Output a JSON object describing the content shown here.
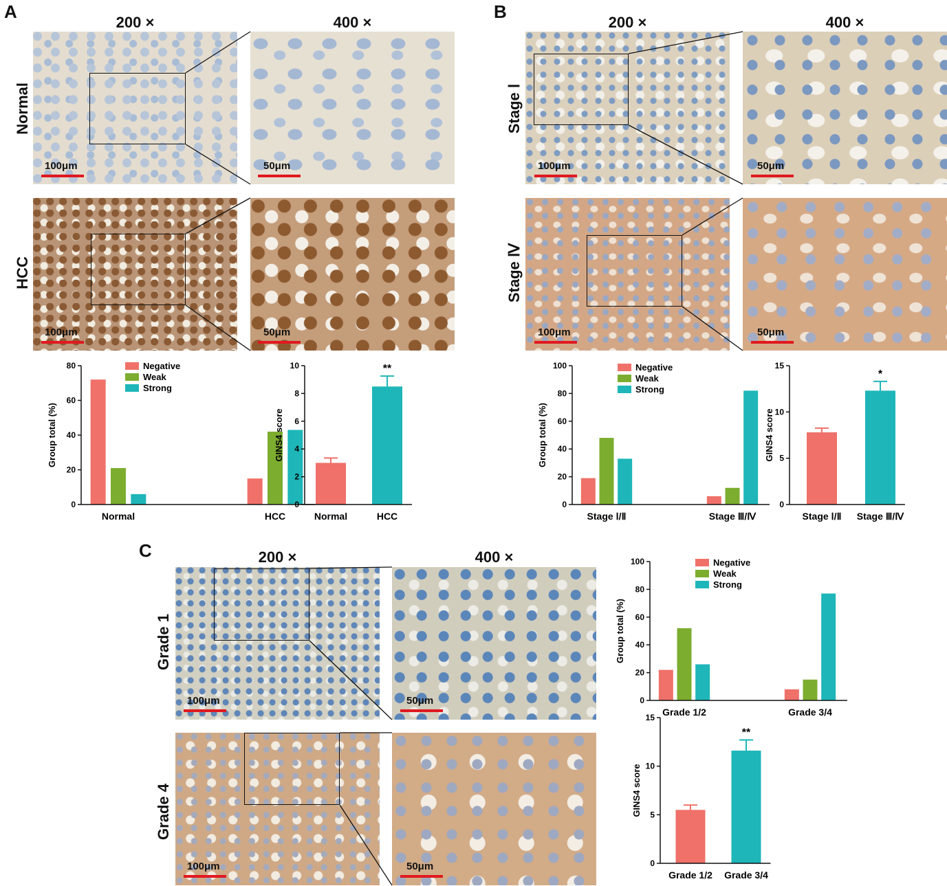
{
  "panels": {
    "A": {
      "letter": "A",
      "mag_low": "200 ×",
      "mag_high": "400 ×",
      "rows": [
        "Normal",
        "HCC"
      ],
      "scale_low": "100μm",
      "scale_high": "50μm"
    },
    "B": {
      "letter": "B",
      "mag_low": "200 ×",
      "mag_high": "400 ×",
      "rows": [
        "Stage Ⅰ",
        "Stage Ⅳ"
      ],
      "scale_low": "100μm",
      "scale_high": "50μm"
    },
    "C": {
      "letter": "C",
      "mag_low": "200 ×",
      "mag_high": "400 ×",
      "rows": [
        "Grade 1",
        "Grade 4"
      ],
      "scale_low": "100μm",
      "scale_high": "50μm"
    }
  },
  "colors": {
    "negative": "#ef7169",
    "weak": "#7cad2f",
    "strong": "#1eb6b9"
  },
  "chart_data": [
    {
      "id": "A-group",
      "type": "bar",
      "ylabel": "Group total (%)",
      "ylim": [
        0,
        80
      ],
      "yticks": [
        0,
        20,
        40,
        60,
        80
      ],
      "categories": [
        "Normal",
        "HCC"
      ],
      "legend": "top",
      "series": [
        {
          "name": "Negative",
          "values": [
            72,
            15
          ]
        },
        {
          "name": "Weak",
          "values": [
            21,
            42
          ]
        },
        {
          "name": "Strong",
          "values": [
            6,
            43
          ]
        }
      ]
    },
    {
      "id": "A-score",
      "type": "bar",
      "ylabel": "GINS4 score",
      "ylim": [
        0,
        10
      ],
      "yticks": [
        0,
        2,
        4,
        6,
        8,
        10
      ],
      "categories": [
        "Normal",
        "HCC"
      ],
      "values": [
        3.0,
        8.5
      ],
      "errors": [
        0.35,
        0.75
      ],
      "annotation": "**"
    },
    {
      "id": "B-group",
      "type": "bar",
      "ylabel": "Group total (%)",
      "ylim": [
        0,
        100
      ],
      "yticks": [
        0,
        20,
        40,
        60,
        80,
        100
      ],
      "categories": [
        "Stage Ⅰ/Ⅱ",
        "Stage Ⅲ/Ⅳ"
      ],
      "legend": "top",
      "series": [
        {
          "name": "Negative",
          "values": [
            19,
            6
          ]
        },
        {
          "name": "Weak",
          "values": [
            48,
            12
          ]
        },
        {
          "name": "Strong",
          "values": [
            33,
            82
          ]
        }
      ]
    },
    {
      "id": "B-score",
      "type": "bar",
      "ylabel": "GINS4 score",
      "ylim": [
        0,
        15
      ],
      "yticks": [
        0,
        5,
        10,
        15
      ],
      "categories": [
        "Stage Ⅰ/Ⅱ",
        "Stage Ⅲ/Ⅳ"
      ],
      "values": [
        7.8,
        12.3
      ],
      "errors": [
        0.45,
        1.0
      ],
      "annotation": "*"
    },
    {
      "id": "C-group",
      "type": "bar",
      "ylabel": "Group total (%)",
      "ylim": [
        0,
        100
      ],
      "yticks": [
        0,
        20,
        40,
        60,
        80,
        100
      ],
      "categories": [
        "Grade 1/2",
        "Grade 3/4"
      ],
      "legend": "top",
      "series": [
        {
          "name": "Negative",
          "values": [
            22,
            8
          ]
        },
        {
          "name": "Weak",
          "values": [
            52,
            15
          ]
        },
        {
          "name": "Strong",
          "values": [
            26,
            77
          ]
        }
      ]
    },
    {
      "id": "C-score",
      "type": "bar",
      "ylabel": "GINS4 score",
      "ylim": [
        0,
        15
      ],
      "yticks": [
        0,
        5,
        10,
        15
      ],
      "categories": [
        "Grade 1/2",
        "Grade 3/4"
      ],
      "values": [
        5.5,
        11.6
      ],
      "errors": [
        0.5,
        1.1
      ],
      "annotation": "**"
    }
  ]
}
